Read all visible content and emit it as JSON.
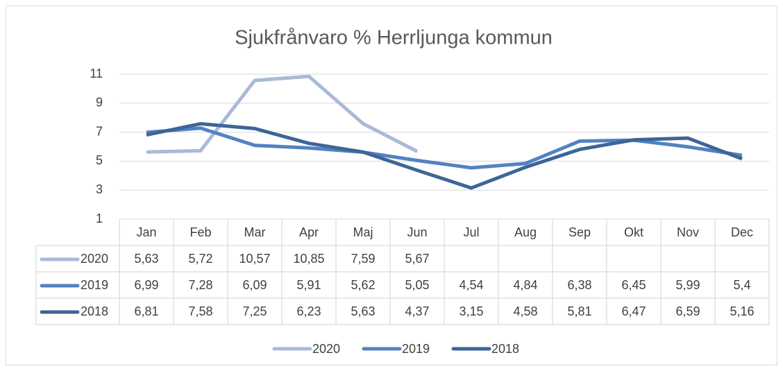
{
  "chart_data": {
    "type": "line",
    "title": "Sjukfrånvaro % Herrljunga kommun",
    "categories": [
      "Jan",
      "Feb",
      "Mar",
      "Apr",
      "Maj",
      "Jun",
      "Jul",
      "Aug",
      "Sep",
      "Okt",
      "Nov",
      "Dec"
    ],
    "series": [
      {
        "name": "2020",
        "color": "#a9b9d9",
        "values": [
          5.63,
          5.72,
          10.57,
          10.85,
          7.59,
          5.67,
          null,
          null,
          null,
          null,
          null,
          null
        ],
        "value_labels": [
          "5,63",
          "5,72",
          "10,57",
          "10,85",
          "7,59",
          "5,67",
          null,
          null,
          null,
          null,
          null,
          null
        ]
      },
      {
        "name": "2019",
        "color": "#5282c2",
        "values": [
          6.99,
          7.28,
          6.09,
          5.91,
          5.62,
          5.05,
          4.54,
          4.84,
          6.38,
          6.45,
          5.99,
          5.4
        ],
        "value_labels": [
          "6,99",
          "7,28",
          "6,09",
          "5,91",
          "5,62",
          "5,05",
          "4,54",
          "4,84",
          "6,38",
          "6,45",
          "5,99",
          "5,4"
        ]
      },
      {
        "name": "2018",
        "color": "#3d6598",
        "values": [
          6.81,
          7.58,
          7.25,
          6.23,
          5.63,
          4.37,
          3.15,
          4.58,
          5.81,
          6.47,
          6.59,
          5.16
        ],
        "value_labels": [
          "6,81",
          "7,58",
          "7,25",
          "6,23",
          "5,63",
          "4,37",
          "3,15",
          "4,58",
          "5,81",
          "6,47",
          "6,59",
          "5,16"
        ]
      }
    ],
    "ylim": [
      1,
      11
    ],
    "yticks": [
      1,
      3,
      5,
      7,
      9,
      11
    ],
    "grid": true,
    "legend": "bottom"
  }
}
